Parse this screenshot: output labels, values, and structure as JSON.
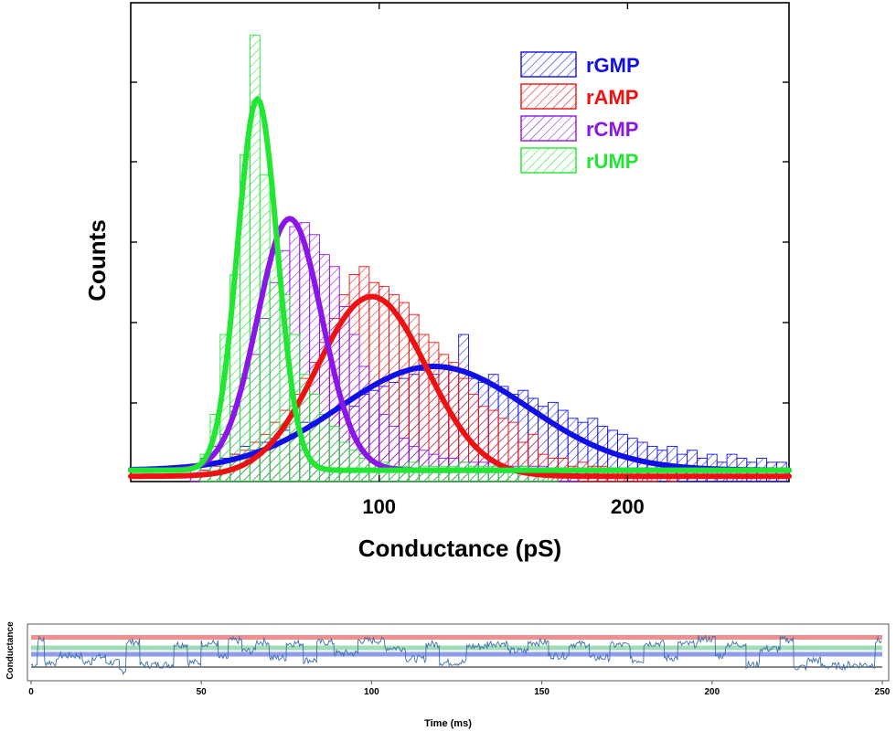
{
  "chart_data": [
    {
      "type": "histogram",
      "xlabel": "Conductance (pS)",
      "ylabel": "Counts",
      "xlim": [
        0,
        265
      ],
      "ylim": [
        0,
        1
      ],
      "x_ticks": [
        100,
        200
      ],
      "y_ticks_labeled": false,
      "legend_position": "top-right",
      "bin_width": 4,
      "series": [
        {
          "name": "rGMP",
          "color": "#1010e6",
          "fit_peak_x": 122,
          "fit_peak_y": 0.26,
          "fit_sigma": 38,
          "bins_x": [
            24,
            28,
            32,
            36,
            40,
            44,
            48,
            52,
            56,
            60,
            64,
            68,
            72,
            76,
            80,
            84,
            88,
            92,
            96,
            100,
            104,
            108,
            112,
            116,
            120,
            124,
            128,
            132,
            136,
            140,
            144,
            148,
            152,
            156,
            160,
            164,
            168,
            172,
            176,
            180,
            184,
            188,
            192,
            196,
            200,
            204,
            208,
            212,
            216,
            220,
            224,
            228,
            232,
            236,
            240,
            244,
            248,
            252,
            256,
            260
          ],
          "bins_y": [
            0.0,
            0.01,
            0.03,
            0.04,
            0.05,
            0.07,
            0.06,
            0.08,
            0.09,
            0.11,
            0.1,
            0.13,
            0.13,
            0.15,
            0.16,
            0.18,
            0.17,
            0.2,
            0.21,
            0.22,
            0.23,
            0.24,
            0.25,
            0.26,
            0.25,
            0.27,
            0.26,
            0.35,
            0.24,
            0.23,
            0.25,
            0.22,
            0.2,
            0.21,
            0.19,
            0.17,
            0.18,
            0.16,
            0.14,
            0.13,
            0.14,
            0.12,
            0.11,
            0.1,
            0.09,
            0.08,
            0.07,
            0.06,
            0.07,
            0.05,
            0.06,
            0.04,
            0.05,
            0.03,
            0.05,
            0.04,
            0.03,
            0.04,
            0.03,
            0.03
          ]
        },
        {
          "name": "rAMP",
          "color": "#ee1111",
          "fit_peak_x": 97,
          "fit_peak_y": 0.45,
          "fit_sigma": 22,
          "bins_x": [
            28,
            32,
            36,
            40,
            44,
            48,
            52,
            56,
            60,
            64,
            68,
            72,
            76,
            80,
            84,
            88,
            92,
            96,
            100,
            104,
            108,
            112,
            116,
            120,
            124,
            128,
            132,
            136,
            140,
            144,
            148,
            152,
            156,
            160,
            164,
            168,
            172,
            176,
            180,
            184,
            188,
            192,
            196,
            200,
            204,
            208,
            212,
            216,
            220,
            224,
            228,
            232,
            236,
            240,
            244,
            248,
            252,
            256,
            260
          ],
          "bins_y": [
            0.01,
            0.02,
            0.03,
            0.05,
            0.06,
            0.08,
            0.1,
            0.13,
            0.16,
            0.2,
            0.24,
            0.28,
            0.33,
            0.39,
            0.45,
            0.5,
            0.52,
            0.48,
            0.47,
            0.45,
            0.43,
            0.4,
            0.35,
            0.33,
            0.3,
            0.28,
            0.24,
            0.2,
            0.17,
            0.16,
            0.14,
            0.13,
            0.08,
            0.1,
            0.05,
            0.04,
            0.04,
            0.02,
            0.03,
            0.02,
            0.02,
            0.01,
            0.01,
            0.01,
            0.01,
            0.01,
            0.0,
            0.01,
            0.0,
            0.0,
            0.0,
            0.0,
            0.0,
            0.0,
            0.0,
            0.0,
            0.0,
            0.0,
            0.0
          ]
        },
        {
          "name": "rCMP",
          "color": "#8a16e8",
          "fit_peak_x": 64,
          "fit_peak_y": 0.63,
          "fit_sigma": 13,
          "bins_x": [
            24,
            28,
            32,
            36,
            40,
            44,
            48,
            52,
            56,
            60,
            64,
            68,
            72,
            76,
            80,
            84,
            88,
            92,
            96,
            100,
            104,
            108,
            112,
            116,
            120,
            124,
            128,
            132,
            136,
            140,
            144,
            148,
            152,
            156,
            160,
            164,
            168,
            172,
            176
          ],
          "bins_y": [
            0.02,
            0.04,
            0.07,
            0.1,
            0.17,
            0.24,
            0.3,
            0.39,
            0.48,
            0.56,
            0.62,
            0.63,
            0.6,
            0.55,
            0.52,
            0.42,
            0.35,
            0.27,
            0.22,
            0.15,
            0.12,
            0.09,
            0.07,
            0.06,
            0.05,
            0.04,
            0.04,
            0.03,
            0.03,
            0.03,
            0.03,
            0.02,
            0.02,
            0.02,
            0.02,
            0.02,
            0.01,
            0.01,
            0.01
          ]
        },
        {
          "name": "rUMP",
          "color": "#21e632",
          "fit_peak_x": 51,
          "fit_peak_y": 0.93,
          "fit_sigma": 8,
          "bins_x": [
            24,
            28,
            32,
            36,
            40,
            44,
            48,
            52,
            56,
            60,
            64,
            68,
            72,
            76,
            80,
            84,
            88,
            92,
            96,
            100,
            104,
            108,
            112,
            116,
            120,
            124,
            128,
            132,
            136,
            140,
            144,
            148,
            152,
            156,
            160,
            164,
            168
          ],
          "bins_y": [
            0.0,
            0.05,
            0.15,
            0.35,
            0.5,
            0.8,
            1.1,
            0.75,
            0.55,
            0.45,
            0.35,
            0.25,
            0.2,
            0.15,
            0.12,
            0.08,
            0.06,
            0.04,
            0.03,
            0.03,
            0.02,
            0.02,
            0.03,
            0.02,
            0.02,
            0.02,
            0.02,
            0.03,
            0.02,
            0.02,
            0.02,
            0.02,
            0.01,
            0.02,
            0.01,
            0.01,
            0.01
          ]
        }
      ]
    },
    {
      "type": "line",
      "xlabel": "Time (ms)",
      "ylabel": "Conductance",
      "xlim": [
        0,
        250
      ],
      "x_ticks": [
        0,
        50,
        100,
        150,
        200,
        250
      ],
      "ylim": [
        0,
        1
      ],
      "y_ticks_labeled": false,
      "levels": [
        {
          "y": 0.85,
          "color": "#f07a7a"
        },
        {
          "y": 0.62,
          "color": "#8fd6ac"
        },
        {
          "y": 0.48,
          "color": "#7d8bea"
        },
        {
          "y": 0.2,
          "color": "#444444"
        }
      ],
      "trace_color": "#3d6fa8",
      "trace_segments": [
        {
          "x0": 0,
          "x1": 2,
          "y": 0.25
        },
        {
          "x0": 2,
          "x1": 4,
          "y": 0.8
        },
        {
          "x0": 4,
          "x1": 8,
          "y": 0.3
        },
        {
          "x0": 8,
          "x1": 15,
          "y": 0.45
        },
        {
          "x0": 15,
          "x1": 18,
          "y": 0.3
        },
        {
          "x0": 18,
          "x1": 22,
          "y": 0.42
        },
        {
          "x0": 22,
          "x1": 26,
          "y": 0.3
        },
        {
          "x0": 26,
          "x1": 28,
          "y": 0.12
        },
        {
          "x0": 28,
          "x1": 32,
          "y": 0.75
        },
        {
          "x0": 32,
          "x1": 42,
          "y": 0.25
        },
        {
          "x0": 42,
          "x1": 46,
          "y": 0.7
        },
        {
          "x0": 46,
          "x1": 50,
          "y": 0.3
        },
        {
          "x0": 50,
          "x1": 55,
          "y": 0.72
        },
        {
          "x0": 55,
          "x1": 58,
          "y": 0.4
        },
        {
          "x0": 58,
          "x1": 62,
          "y": 0.78
        },
        {
          "x0": 62,
          "x1": 66,
          "y": 0.55
        },
        {
          "x0": 66,
          "x1": 70,
          "y": 0.75
        },
        {
          "x0": 70,
          "x1": 75,
          "y": 0.4
        },
        {
          "x0": 75,
          "x1": 80,
          "y": 0.72
        },
        {
          "x0": 80,
          "x1": 84,
          "y": 0.35
        },
        {
          "x0": 84,
          "x1": 89,
          "y": 0.74
        },
        {
          "x0": 89,
          "x1": 96,
          "y": 0.5
        },
        {
          "x0": 96,
          "x1": 104,
          "y": 0.78
        },
        {
          "x0": 104,
          "x1": 110,
          "y": 0.62
        },
        {
          "x0": 110,
          "x1": 116,
          "y": 0.38
        },
        {
          "x0": 116,
          "x1": 120,
          "y": 0.7
        },
        {
          "x0": 120,
          "x1": 128,
          "y": 0.3
        },
        {
          "x0": 128,
          "x1": 134,
          "y": 0.65
        },
        {
          "x0": 134,
          "x1": 140,
          "y": 0.72
        },
        {
          "x0": 140,
          "x1": 146,
          "y": 0.55
        },
        {
          "x0": 146,
          "x1": 152,
          "y": 0.74
        },
        {
          "x0": 152,
          "x1": 158,
          "y": 0.45
        },
        {
          "x0": 158,
          "x1": 164,
          "y": 0.7
        },
        {
          "x0": 164,
          "x1": 170,
          "y": 0.4
        },
        {
          "x0": 170,
          "x1": 176,
          "y": 0.68
        },
        {
          "x0": 176,
          "x1": 180,
          "y": 0.35
        },
        {
          "x0": 180,
          "x1": 186,
          "y": 0.72
        },
        {
          "x0": 186,
          "x1": 190,
          "y": 0.4
        },
        {
          "x0": 190,
          "x1": 196,
          "y": 0.7
        },
        {
          "x0": 196,
          "x1": 201,
          "y": 0.82
        },
        {
          "x0": 201,
          "x1": 204,
          "y": 0.45
        },
        {
          "x0": 204,
          "x1": 210,
          "y": 0.7
        },
        {
          "x0": 210,
          "x1": 214,
          "y": 0.25
        },
        {
          "x0": 214,
          "x1": 220,
          "y": 0.6
        },
        {
          "x0": 220,
          "x1": 224,
          "y": 0.8
        },
        {
          "x0": 224,
          "x1": 228,
          "y": 0.2
        },
        {
          "x0": 228,
          "x1": 232,
          "y": 0.35
        },
        {
          "x0": 232,
          "x1": 240,
          "y": 0.22
        },
        {
          "x0": 240,
          "x1": 248,
          "y": 0.25
        },
        {
          "x0": 248,
          "x1": 250,
          "y": 0.78
        }
      ]
    }
  ]
}
